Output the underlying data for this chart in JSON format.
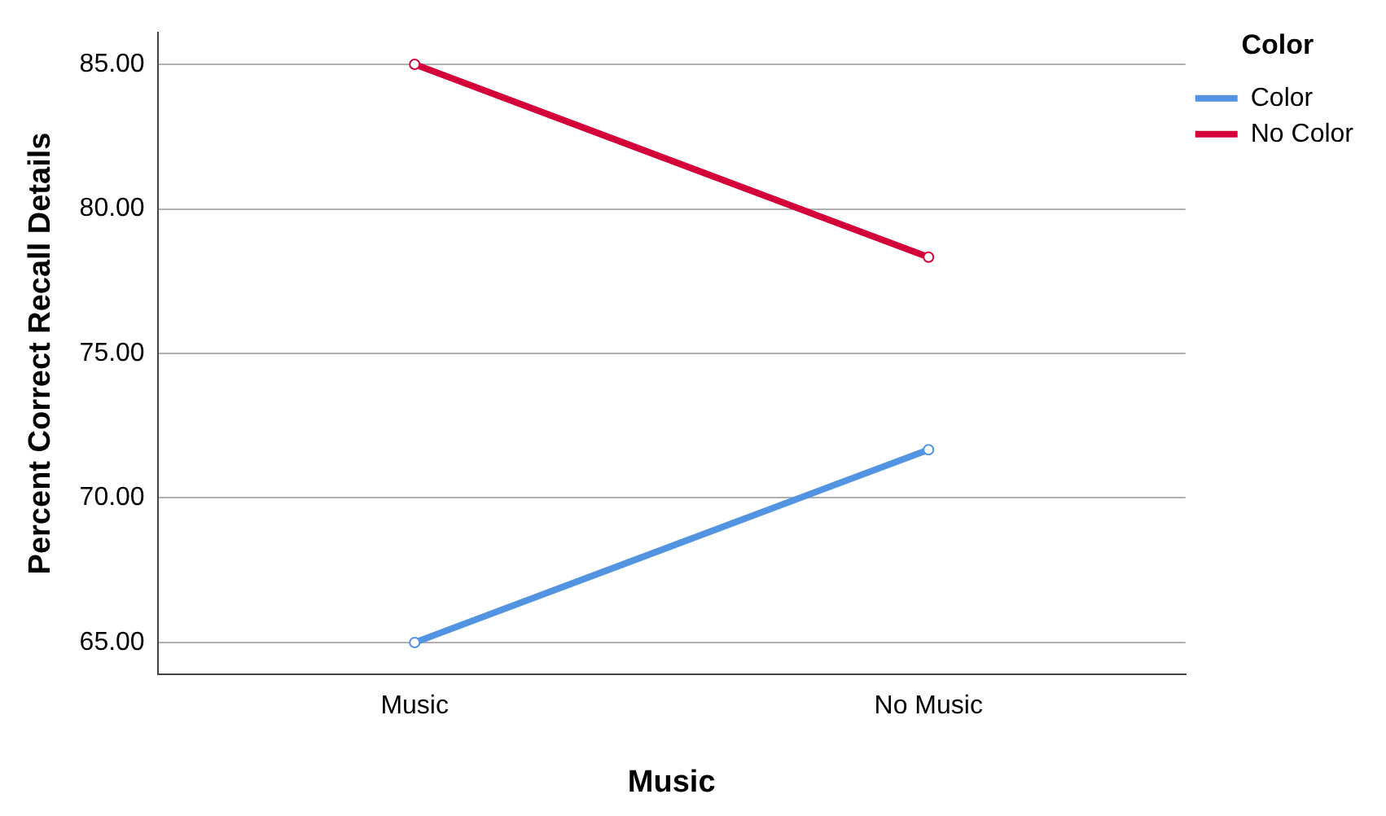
{
  "chart_data": {
    "type": "line",
    "xlabel": "Music",
    "ylabel": "Percent Correct Recall Details",
    "legend_title": "Color",
    "categories": [
      "Music",
      "No Music"
    ],
    "series": [
      {
        "name": "Color",
        "color": "#5294e2",
        "values": [
          65.0,
          71.67
        ]
      },
      {
        "name": "No Color",
        "color": "#d4003a",
        "values": [
          85.0,
          78.33
        ]
      }
    ],
    "ylim": [
      63.9,
      86.1
    ],
    "yticks": [
      {
        "value": 65,
        "label": "65.00"
      },
      {
        "value": 70,
        "label": "70.00"
      },
      {
        "value": 75,
        "label": "75.00"
      },
      {
        "value": 80,
        "label": "80.00"
      },
      {
        "value": 85,
        "label": "85.00"
      }
    ],
    "grid": "y",
    "legend": "top right",
    "marker": "circle",
    "line_style": "solid"
  }
}
